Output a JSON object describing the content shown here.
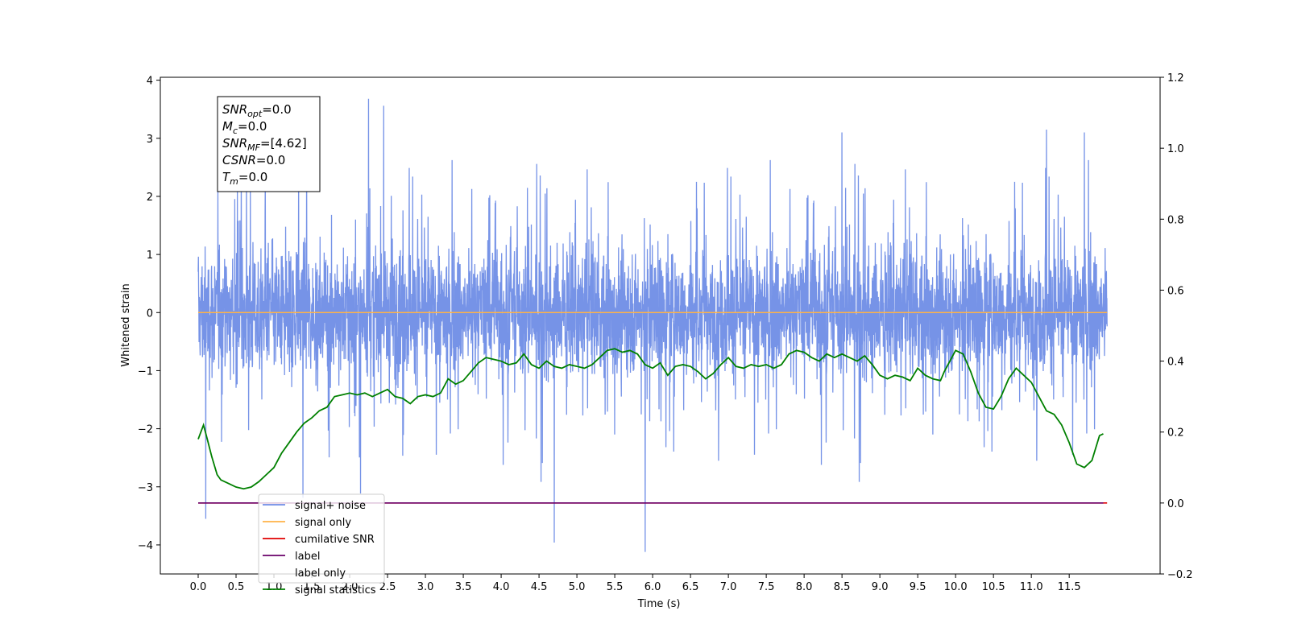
{
  "chart_data": {
    "type": "line",
    "xlabel": "Time (s)",
    "ylabel": "Whitened strain",
    "x_ticks": [
      "0.0",
      "0.5",
      "1.0",
      "1.5",
      "2.0",
      "2.5",
      "3.0",
      "3.5",
      "4.0",
      "4.5",
      "5.0",
      "5.5",
      "6.0",
      "6.5",
      "7.0",
      "7.5",
      "8.0",
      "8.5",
      "9.0",
      "9.5",
      "10.0",
      "10.5",
      "11.0",
      "11.5"
    ],
    "xlim": [
      -0.5,
      12.7
    ],
    "ylim_left": [
      -4.5,
      4.05
    ],
    "y_ticks_left": [
      "4",
      "3",
      "2",
      "1",
      "0",
      "−1",
      "−2",
      "−3",
      "−4"
    ],
    "ylim_right": [
      -0.2,
      1.2
    ],
    "y_ticks_right": [
      "1.2",
      "1.0",
      "0.8",
      "0.6",
      "0.4",
      "0.2",
      "0.0",
      "−0.2"
    ],
    "grid": false,
    "legend_position": "lower-left",
    "annotations": [
      {
        "var": "SNR",
        "sub": "opt",
        "rest": "=0.0"
      },
      {
        "var": "M",
        "sub": "c",
        "rest": "=0.0"
      },
      {
        "var": "SNR",
        "sub": "MF",
        "rest": "=[4.62]"
      },
      {
        "var": "CSNR",
        "sub": "",
        "rest": "=0.0"
      },
      {
        "var": "T",
        "sub": "m",
        "rest": "=0.0"
      }
    ],
    "series": [
      {
        "name": "signal+ noise",
        "axis": "left",
        "color": "#6f8de6",
        "style": "noise",
        "x_range": [
          0.0,
          12.0
        ],
        "mean": 0.0,
        "std": 0.85,
        "max_peak": 3.68,
        "min_trough": -4.12
      },
      {
        "name": "signal only",
        "axis": "left",
        "color": "#ffb347",
        "x": [
          0.0,
          12.0
        ],
        "y": [
          0.0,
          0.0
        ]
      },
      {
        "name": "cumilative SNR",
        "axis": "right",
        "color": "#e00000",
        "x": [
          0.0,
          12.0
        ],
        "y": [
          0.0,
          0.0
        ]
      },
      {
        "name": "label",
        "axis": "right",
        "color": "#6a006a",
        "x": [
          0.0,
          11.95
        ],
        "y": [
          0.0,
          0.0
        ]
      },
      {
        "name": "label only",
        "axis": "right",
        "color": "#ffffff",
        "hidden": true,
        "x": [],
        "y": []
      },
      {
        "name": "signal statistics",
        "axis": "right",
        "color": "#008000",
        "x": [
          0.0,
          0.07,
          0.12,
          0.18,
          0.25,
          0.3,
          0.4,
          0.5,
          0.6,
          0.7,
          0.8,
          0.9,
          1.0,
          1.1,
          1.2,
          1.3,
          1.4,
          1.5,
          1.6,
          1.7,
          1.8,
          1.9,
          2.0,
          2.1,
          2.2,
          2.3,
          2.4,
          2.5,
          2.6,
          2.7,
          2.8,
          2.9,
          3.0,
          3.1,
          3.2,
          3.3,
          3.4,
          3.5,
          3.6,
          3.7,
          3.8,
          3.9,
          4.0,
          4.1,
          4.2,
          4.3,
          4.4,
          4.5,
          4.6,
          4.7,
          4.8,
          4.9,
          5.0,
          5.1,
          5.2,
          5.3,
          5.4,
          5.5,
          5.6,
          5.7,
          5.8,
          5.9,
          6.0,
          6.1,
          6.2,
          6.3,
          6.4,
          6.5,
          6.6,
          6.7,
          6.8,
          6.9,
          7.0,
          7.1,
          7.2,
          7.3,
          7.4,
          7.5,
          7.6,
          7.7,
          7.8,
          7.9,
          8.0,
          8.1,
          8.2,
          8.3,
          8.4,
          8.5,
          8.6,
          8.7,
          8.8,
          8.9,
          9.0,
          9.1,
          9.2,
          9.3,
          9.4,
          9.5,
          9.6,
          9.7,
          9.8,
          9.85,
          9.9,
          10.0,
          10.1,
          10.2,
          10.3,
          10.4,
          10.5,
          10.6,
          10.7,
          10.8,
          10.9,
          11.0,
          11.1,
          11.2,
          11.3,
          11.4,
          11.5,
          11.6,
          11.7,
          11.8,
          11.9,
          11.95
        ],
        "y": [
          0.18,
          0.22,
          0.18,
          0.13,
          0.08,
          0.065,
          0.055,
          0.045,
          0.04,
          0.045,
          0.06,
          0.08,
          0.1,
          0.14,
          0.17,
          0.2,
          0.225,
          0.24,
          0.26,
          0.27,
          0.3,
          0.305,
          0.31,
          0.305,
          0.31,
          0.3,
          0.31,
          0.32,
          0.3,
          0.295,
          0.28,
          0.3,
          0.305,
          0.3,
          0.31,
          0.35,
          0.335,
          0.345,
          0.37,
          0.395,
          0.41,
          0.405,
          0.4,
          0.39,
          0.395,
          0.42,
          0.39,
          0.38,
          0.4,
          0.385,
          0.38,
          0.39,
          0.385,
          0.38,
          0.39,
          0.41,
          0.43,
          0.435,
          0.425,
          0.43,
          0.42,
          0.39,
          0.38,
          0.395,
          0.36,
          0.385,
          0.39,
          0.385,
          0.37,
          0.35,
          0.365,
          0.39,
          0.41,
          0.385,
          0.38,
          0.39,
          0.385,
          0.39,
          0.38,
          0.39,
          0.42,
          0.43,
          0.425,
          0.41,
          0.4,
          0.42,
          0.41,
          0.42,
          0.41,
          0.4,
          0.415,
          0.39,
          0.36,
          0.35,
          0.36,
          0.355,
          0.345,
          0.38,
          0.36,
          0.35,
          0.345,
          0.37,
          0.39,
          0.43,
          0.42,
          0.37,
          0.31,
          0.27,
          0.265,
          0.3,
          0.35,
          0.38,
          0.36,
          0.34,
          0.3,
          0.26,
          0.25,
          0.22,
          0.17,
          0.11,
          0.1,
          0.12,
          0.19,
          0.195
        ]
      }
    ]
  }
}
